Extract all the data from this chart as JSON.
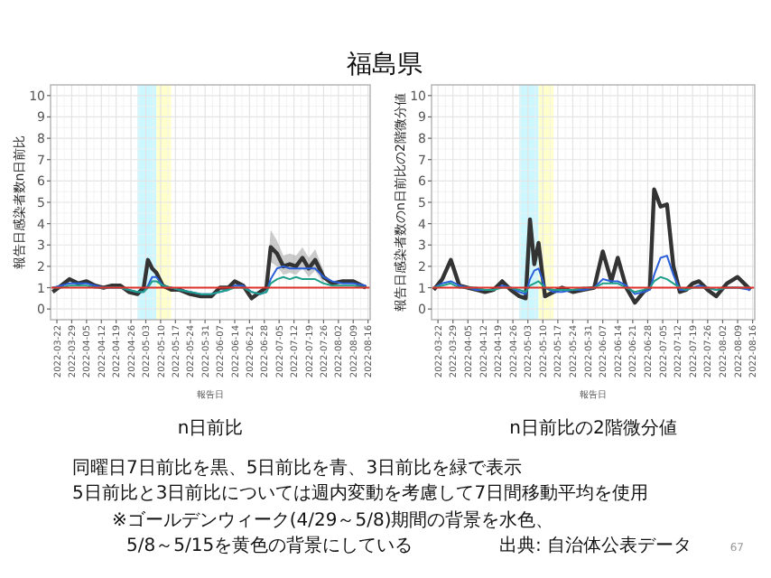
{
  "chart_data": [
    {
      "type": "line",
      "title": "福島県",
      "subtitle": "n日前比",
      "xlabel": "報告日",
      "ylabel": "報告日感染者数n日前比",
      "x": [
        "2022-03-20",
        "2022-03-24",
        "2022-03-28",
        "2022-04-01",
        "2022-04-05",
        "2022-04-09",
        "2022-04-13",
        "2022-04-17",
        "2022-04-21",
        "2022-04-25",
        "2022-04-29",
        "2022-05-02",
        "2022-05-04",
        "2022-05-06",
        "2022-05-08",
        "2022-05-11",
        "2022-05-15",
        "2022-05-19",
        "2022-05-24",
        "2022-05-29",
        "2022-06-03",
        "2022-06-07",
        "2022-06-11",
        "2022-06-14",
        "2022-06-18",
        "2022-06-22",
        "2022-06-26",
        "2022-06-29",
        "2022-07-01",
        "2022-07-04",
        "2022-07-07",
        "2022-07-10",
        "2022-07-13",
        "2022-07-16",
        "2022-07-19",
        "2022-07-22",
        "2022-07-26",
        "2022-07-30",
        "2022-08-04",
        "2022-08-09",
        "2022-08-15"
      ],
      "series": [
        {
          "color": "#333333",
          "values": [
            0.8,
            1.1,
            1.4,
            1.2,
            1.3,
            1.1,
            1.0,
            1.1,
            1.1,
            0.8,
            0.7,
            1.0,
            2.3,
            1.9,
            1.7,
            1.1,
            0.9,
            0.9,
            0.7,
            0.6,
            0.6,
            1.0,
            1.0,
            1.3,
            1.1,
            0.5,
            0.8,
            1.0,
            2.9,
            2.6,
            2.0,
            2.1,
            2.0,
            2.4,
            1.9,
            2.3,
            1.5,
            1.2,
            1.3,
            1.3,
            1.0
          ],
          "lower": [
            null,
            null,
            null,
            null,
            null,
            null,
            null,
            null,
            null,
            null,
            null,
            null,
            null,
            null,
            null,
            null,
            null,
            null,
            null,
            null,
            null,
            null,
            null,
            null,
            null,
            null,
            null,
            0.9,
            2.2,
            2.0,
            1.6,
            1.7,
            1.6,
            1.9,
            1.5,
            1.8,
            1.2,
            null,
            null,
            null,
            null
          ],
          "upper": [
            null,
            null,
            null,
            null,
            null,
            null,
            null,
            null,
            null,
            null,
            null,
            null,
            null,
            null,
            null,
            null,
            null,
            null,
            null,
            null,
            null,
            null,
            null,
            null,
            null,
            null,
            null,
            1.2,
            3.7,
            3.2,
            2.5,
            2.6,
            2.5,
            2.9,
            2.4,
            2.8,
            1.8,
            null,
            null,
            null,
            null
          ]
        },
        {
          "color": "#2b5fd9",
          "values": [
            1.0,
            1.1,
            1.2,
            1.2,
            1.2,
            1.1,
            1.0,
            1.0,
            1.0,
            0.9,
            0.8,
            0.8,
            1.1,
            1.5,
            1.5,
            1.1,
            1.0,
            0.9,
            0.8,
            0.7,
            0.7,
            0.8,
            0.9,
            1.1,
            1.1,
            0.8,
            0.7,
            0.8,
            1.4,
            1.9,
            2.0,
            1.9,
            1.9,
            1.9,
            1.9,
            1.9,
            1.5,
            1.3,
            1.2,
            1.2,
            1.1
          ]
        },
        {
          "color": "#1fa08a",
          "values": [
            1.0,
            1.0,
            1.1,
            1.1,
            1.1,
            1.0,
            1.0,
            1.0,
            1.0,
            0.9,
            0.8,
            0.8,
            1.0,
            1.3,
            1.3,
            1.1,
            1.0,
            0.9,
            0.8,
            0.7,
            0.7,
            0.8,
            0.9,
            1.0,
            1.0,
            0.8,
            0.7,
            0.8,
            1.2,
            1.4,
            1.5,
            1.4,
            1.5,
            1.4,
            1.4,
            1.4,
            1.2,
            1.1,
            1.1,
            1.1,
            1.0
          ]
        }
      ],
      "xlim": [
        "2022-03-19",
        "2022-08-17"
      ],
      "xticks": [
        "2022-03-22",
        "2022-03-29",
        "2022-04-05",
        "2022-04-12",
        "2022-04-19",
        "2022-04-26",
        "2022-05-03",
        "2022-05-10",
        "2022-05-17",
        "2022-05-24",
        "2022-05-31",
        "2022-06-07",
        "2022-06-14",
        "2022-06-21",
        "2022-06-28",
        "2022-07-05",
        "2022-07-12",
        "2022-07-19",
        "2022-07-26",
        "2022-08-02",
        "2022-08-09",
        "2022-08-16"
      ],
      "ylim": [
        -0.5,
        10.5
      ],
      "yticks": [
        0,
        1,
        2,
        3,
        4,
        5,
        6,
        7,
        8,
        9,
        10
      ],
      "grid": true,
      "bands": [
        {
          "axis": "x",
          "from": "2022-04-29",
          "to": "2022-05-08",
          "color": "#ccf7ff"
        },
        {
          "axis": "x",
          "from": "2022-05-08",
          "to": "2022-05-15",
          "color": "#ffffcc"
        }
      ],
      "ref_lines": [
        {
          "axis": "y",
          "value": 1,
          "color": "#e0302a"
        }
      ],
      "annotations": [
        "同曜日7日前比を黒、5日前比を青、3日前比を緑で表示",
        "5日前比と3日前比については週内変動を考慮して7日間移動平均を使用",
        "※ゴールデンウィーク(4/29～5/8)期間の背景を水色、",
        "5/8～5/15を黄色の背景にしている",
        "出典: 自治体公表データ",
        "67"
      ]
    },
    {
      "type": "line",
      "subtitle": "n日前比の2階微分値",
      "xlabel": "報告日",
      "ylabel": "報告日感染者数のn日前比の2階微分値",
      "x": [
        "2022-03-20",
        "2022-03-24",
        "2022-03-28",
        "2022-04-01",
        "2022-04-05",
        "2022-04-09",
        "2022-04-13",
        "2022-04-17",
        "2022-04-21",
        "2022-04-25",
        "2022-04-29",
        "2022-05-02",
        "2022-05-04",
        "2022-05-06",
        "2022-05-08",
        "2022-05-11",
        "2022-05-15",
        "2022-05-19",
        "2022-05-24",
        "2022-05-29",
        "2022-06-03",
        "2022-06-07",
        "2022-06-11",
        "2022-06-14",
        "2022-06-18",
        "2022-06-22",
        "2022-06-26",
        "2022-06-29",
        "2022-07-01",
        "2022-07-04",
        "2022-07-07",
        "2022-07-10",
        "2022-07-13",
        "2022-07-16",
        "2022-07-19",
        "2022-07-22",
        "2022-07-26",
        "2022-07-30",
        "2022-08-04",
        "2022-08-09",
        "2022-08-15"
      ],
      "series": [
        {
          "color": "#333333",
          "values": [
            0.9,
            1.4,
            2.3,
            1.1,
            1.0,
            0.9,
            0.8,
            0.9,
            1.3,
            0.9,
            0.6,
            0.5,
            4.2,
            2.1,
            3.1,
            0.6,
            0.8,
            1.0,
            0.8,
            0.9,
            1.0,
            2.7,
            1.3,
            2.4,
            1.0,
            0.3,
            0.8,
            1.0,
            5.6,
            4.8,
            4.9,
            2.0,
            0.8,
            0.9,
            1.2,
            1.3,
            0.9,
            0.6,
            1.2,
            1.5,
            0.9
          ]
        },
        {
          "color": "#2b5fd9",
          "values": [
            1.0,
            1.2,
            1.3,
            1.1,
            1.0,
            0.9,
            0.9,
            0.9,
            1.1,
            1.0,
            0.8,
            0.7,
            1.4,
            1.8,
            1.9,
            1.0,
            0.8,
            0.8,
            0.9,
            0.9,
            1.0,
            1.4,
            1.3,
            1.3,
            1.1,
            0.7,
            0.8,
            0.9,
            1.6,
            2.4,
            2.5,
            1.6,
            0.9,
            0.9,
            1.0,
            1.1,
            1.0,
            0.9,
            1.0,
            1.0,
            0.9
          ]
        },
        {
          "color": "#1fa08a",
          "values": [
            1.0,
            1.1,
            1.2,
            1.0,
            1.0,
            1.0,
            0.9,
            0.9,
            1.0,
            1.0,
            0.9,
            0.8,
            1.1,
            1.2,
            1.3,
            1.0,
            0.9,
            0.9,
            0.9,
            1.0,
            1.0,
            1.2,
            1.2,
            1.2,
            1.0,
            0.8,
            0.9,
            1.0,
            1.3,
            1.5,
            1.4,
            1.2,
            1.0,
            0.9,
            1.0,
            1.0,
            1.0,
            0.9,
            1.0,
            1.0,
            1.0
          ]
        }
      ],
      "xlim": [
        "2022-03-19",
        "2022-08-17"
      ],
      "xticks": [
        "2022-03-22",
        "2022-03-29",
        "2022-04-05",
        "2022-04-12",
        "2022-04-19",
        "2022-04-26",
        "2022-05-03",
        "2022-05-10",
        "2022-05-17",
        "2022-05-24",
        "2022-05-31",
        "2022-06-07",
        "2022-06-14",
        "2022-06-21",
        "2022-06-28",
        "2022-07-05",
        "2022-07-12",
        "2022-07-19",
        "2022-07-26",
        "2022-08-02",
        "2022-08-09",
        "2022-08-16"
      ],
      "ylim": [
        -0.5,
        10.5
      ],
      "yticks": [
        0,
        1,
        2,
        3,
        4,
        5,
        6,
        7,
        8,
        9,
        10
      ],
      "grid": true,
      "bands": [
        {
          "axis": "x",
          "from": "2022-04-29",
          "to": "2022-05-08",
          "color": "#ccf7ff"
        },
        {
          "axis": "x",
          "from": "2022-05-08",
          "to": "2022-05-15",
          "color": "#ffffcc"
        }
      ],
      "ref_lines": [
        {
          "axis": "y",
          "value": 1,
          "color": "#e0302a"
        }
      ]
    }
  ]
}
